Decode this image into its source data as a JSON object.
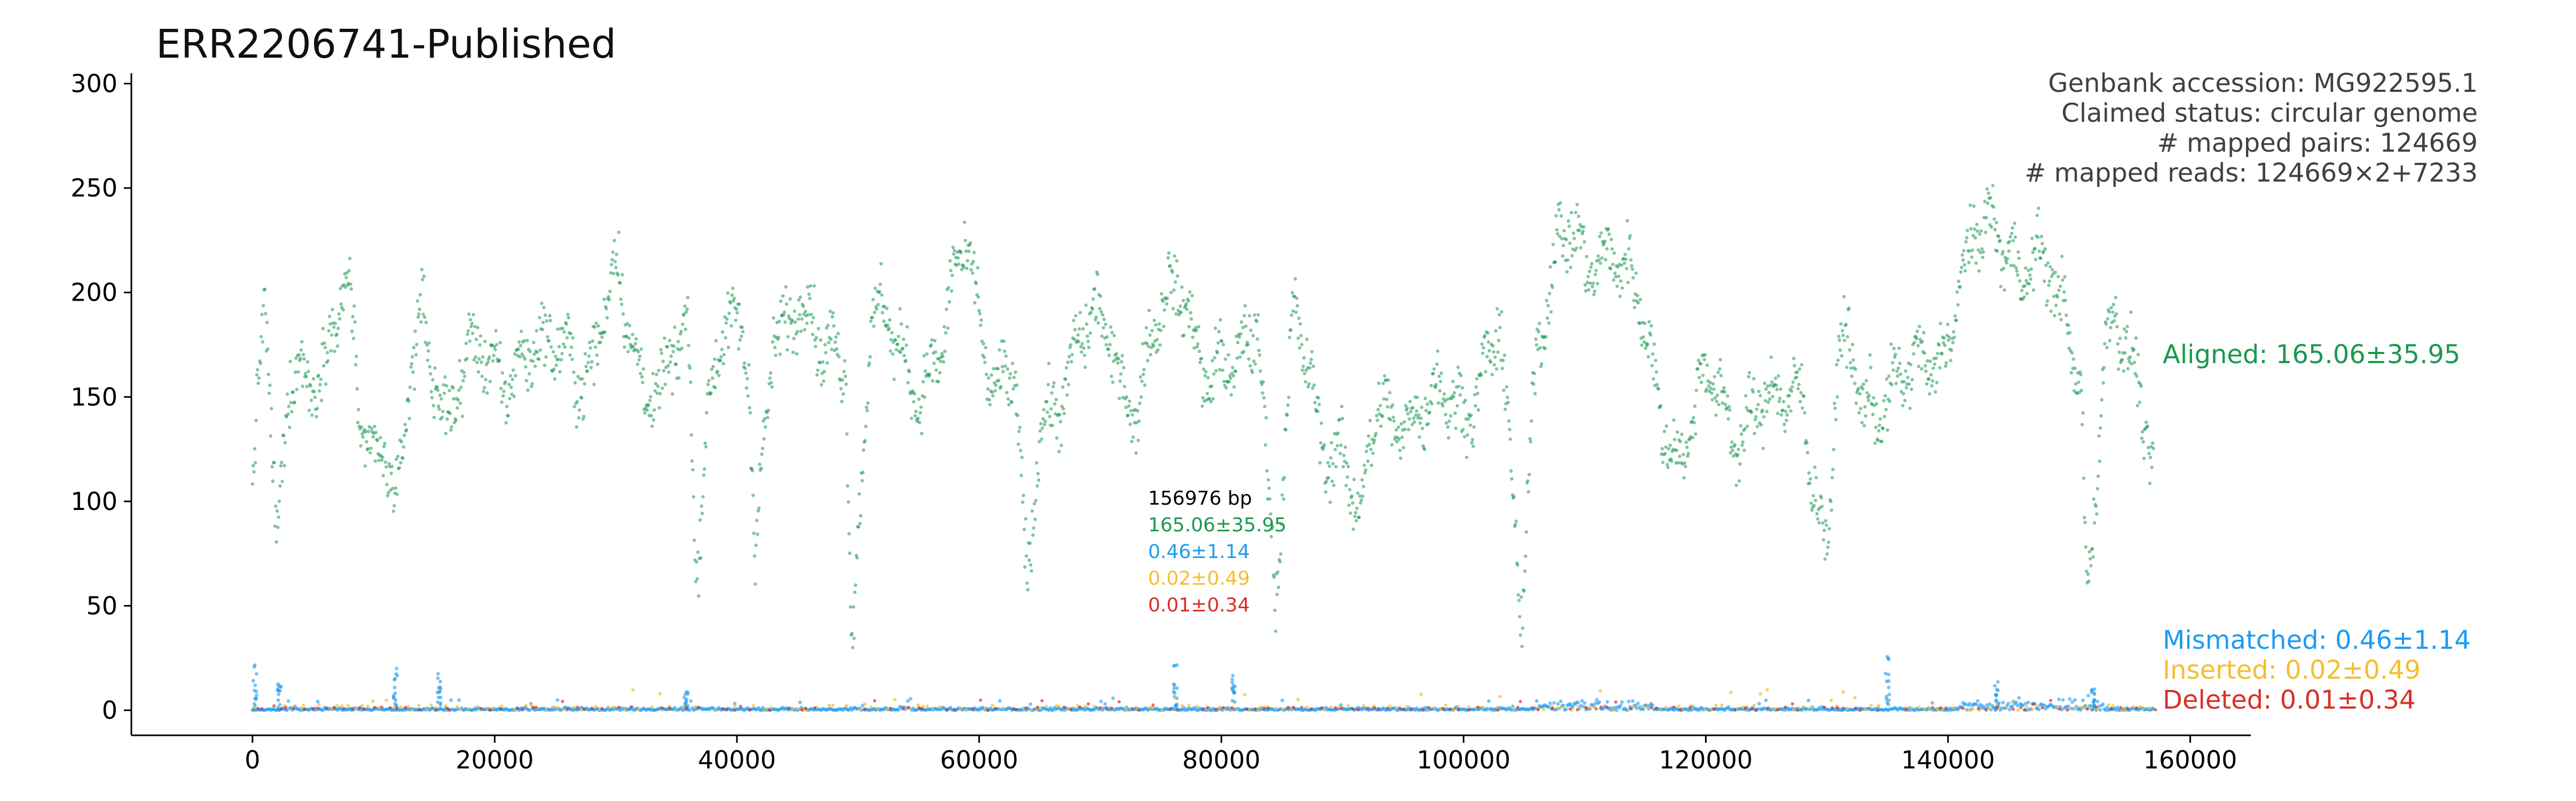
{
  "chart_data": {
    "type": "scatter",
    "title": "ERR2206741-Published",
    "xlabel": "",
    "ylabel": "",
    "xlim": [
      -10000,
      165000
    ],
    "ylim": [
      -12,
      305
    ],
    "x_ticks": [
      0,
      20000,
      40000,
      60000,
      80000,
      100000,
      120000,
      140000,
      160000
    ],
    "y_ticks": [
      0,
      50,
      100,
      150,
      200,
      250,
      300
    ],
    "grid": false,
    "genome_length_label": "156976 bp",
    "info_lines": [
      "Genbank accession: MG922595.1",
      "Claimed status: circular genome",
      "# mapped pairs: 124669",
      "# mapped reads: 124669×2+7233"
    ],
    "series": [
      {
        "name": "Aligned",
        "label": "Aligned: 165.06±35.95",
        "stat": "165.06±35.95",
        "color": "#1a9850",
        "mean": 165.06,
        "sd": 35.95,
        "profile_x": [
          0,
          500,
          1000,
          2000,
          3000,
          4000,
          6000,
          8000,
          9000,
          11000,
          12000,
          13000,
          14000,
          16000,
          18000,
          20000,
          22000,
          24000,
          26000,
          28000,
          30000,
          32000,
          34000,
          36000,
          36600,
          37500,
          39000,
          41000,
          41500,
          43000,
          45000,
          47000,
          49000,
          49500,
          51000,
          53000,
          55000,
          57000,
          59000,
          61000,
          63000,
          64000,
          65000,
          67000,
          69000,
          71000,
          73000,
          75000,
          77000,
          79000,
          81000,
          83000,
          84500,
          86000,
          88000,
          90000,
          91500,
          93000,
          95000,
          97000,
          99000,
          101000,
          103000,
          104800,
          106000,
          108000,
          110000,
          112000,
          114000,
          116000,
          118000,
          120000,
          122000,
          124000,
          126000,
          128000,
          130000,
          131000,
          133000,
          135000,
          137000,
          139000,
          141000,
          143000,
          145000,
          147000,
          149000,
          151000,
          151500,
          153000,
          155000,
          157000
        ],
        "profile_y": [
          95,
          150,
          195,
          60,
          165,
          175,
          160,
          195,
          140,
          130,
          85,
          150,
          190,
          150,
          160,
          165,
          175,
          160,
          180,
          165,
          200,
          170,
          155,
          170,
          60,
          150,
          200,
          150,
          60,
          190,
          200,
          160,
          180,
          40,
          185,
          170,
          165,
          170,
          220,
          170,
          150,
          40,
          140,
          165,
          175,
          180,
          150,
          180,
          210,
          160,
          150,
          200,
          60,
          180,
          140,
          130,
          80,
          145,
          150,
          135,
          150,
          160,
          170,
          45,
          190,
          220,
          210,
          235,
          195,
          150,
          130,
          150,
          140,
          150,
          135,
          160,
          75,
          165,
          150,
          160,
          150,
          170,
          210,
          220,
          230,
          215,
          190,
          170,
          60,
          175,
          165,
          135
        ]
      },
      {
        "name": "Mismatched",
        "label": "Mismatched: 0.46±1.14",
        "stat": "0.46±1.14",
        "color": "#1e9bf0",
        "mean": 0.46,
        "sd": 1.14,
        "spikes_x": [
          200,
          2200,
          11800,
          15400,
          35800,
          76200,
          81000,
          135000,
          144000,
          152000
        ],
        "spikes_y": [
          22,
          13,
          20,
          18,
          9,
          25,
          17,
          26,
          14,
          12
        ],
        "elevated_ranges": [
          [
            106000,
            116000
          ],
          [
            141000,
            153000
          ]
        ]
      },
      {
        "name": "Inserted",
        "label": "Inserted: 0.02±0.49",
        "stat": "0.02±0.49",
        "color": "#f5be30",
        "mean": 0.02,
        "sd": 0.49
      },
      {
        "name": "Deleted",
        "label": "Deleted: 0.01±0.34",
        "stat": "0.01±0.34",
        "color": "#d73027",
        "mean": 0.01,
        "sd": 0.34
      }
    ]
  }
}
